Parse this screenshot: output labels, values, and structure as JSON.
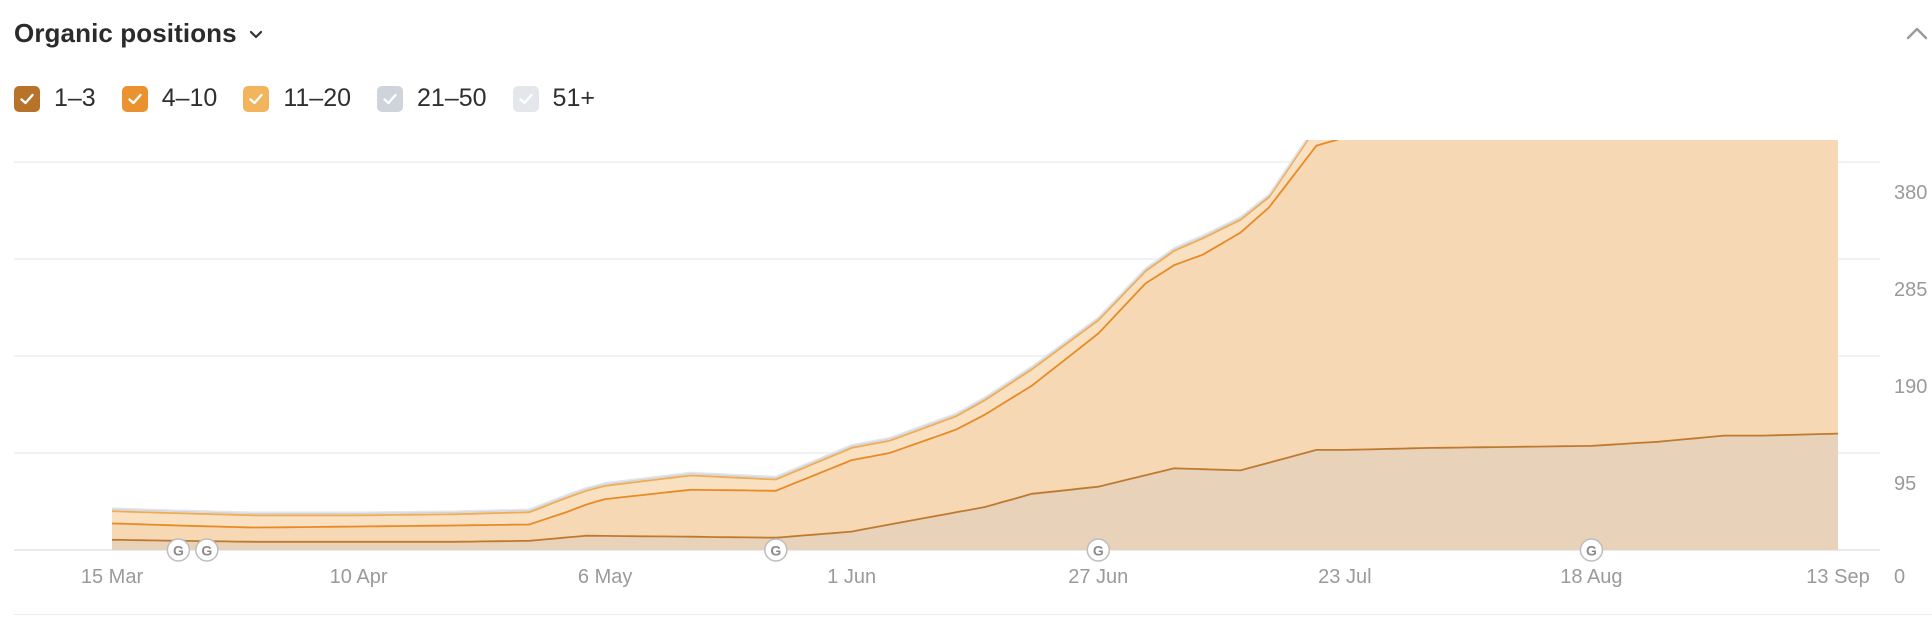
{
  "header": {
    "title": "Organic positions"
  },
  "icons": {
    "dropdown": "chevron-down-icon",
    "collapse": "chevron-up-icon",
    "update_marker": "google-update-icon"
  },
  "legend": [
    {
      "label": "1–3",
      "color": "#b8732a",
      "checked": true
    },
    {
      "label": "4–10",
      "color": "#ea922f",
      "checked": true
    },
    {
      "label": "11–20",
      "color": "#f2b45c",
      "checked": true
    },
    {
      "label": "21–50",
      "color": "#cfd3da",
      "checked": true
    },
    {
      "label": "51+",
      "color": "#e3e6eb",
      "checked": true
    }
  ],
  "chart_data": {
    "type": "area",
    "stacked": true,
    "x_ticks": [
      "15 Mar",
      "10 Apr",
      "6 May",
      "1 Jun",
      "27 Jun",
      "23 Jul",
      "18 Aug",
      "13 Sep"
    ],
    "y_ticks": [
      "0",
      "95",
      "190",
      "285",
      "380"
    ],
    "ylim": [
      0,
      380
    ],
    "grid": true,
    "update_markers": [
      {
        "x": "22 Mar",
        "label": "G"
      },
      {
        "x": "25 Mar",
        "label": "G"
      },
      {
        "x": "24 May",
        "label": "G"
      },
      {
        "x": "27 Jun",
        "label": "G"
      },
      {
        "x": "18 Aug",
        "label": "G"
      }
    ],
    "series": [
      {
        "name": "1–3",
        "color": "#c07a30",
        "x": [
          "15 Mar",
          "22 Mar",
          "30 Mar",
          "10 Apr",
          "20 Apr",
          "28 Apr",
          "4 May",
          "15 May",
          "24 May",
          "1 Jun",
          "5 Jun",
          "15 Jun",
          "20 Jun",
          "27 Jun",
          "5 Jul",
          "12 Jul",
          "20 Jul",
          "23 Jul",
          "1 Aug",
          "10 Aug",
          "18 Aug",
          "25 Aug",
          "1 Sep",
          "5 Sep",
          "13 Sep"
        ],
        "values": [
          10,
          9,
          8,
          8,
          8,
          9,
          14,
          13,
          12,
          18,
          25,
          42,
          55,
          62,
          80,
          78,
          98,
          98,
          100,
          101,
          102,
          106,
          112,
          112,
          114
        ]
      },
      {
        "name": "4–10",
        "color": "#e88a25",
        "x": [
          "15 Mar",
          "22 Mar",
          "30 Mar",
          "10 Apr",
          "20 Apr",
          "28 Apr",
          "2 May",
          "6 May",
          "15 May",
          "24 May",
          "1 Jun",
          "5 Jun",
          "12 Jun",
          "20 Jun",
          "27 Jun",
          "2 Jul",
          "8 Jul",
          "15 Jul",
          "20 Jul",
          "23 Jul",
          "1 Aug",
          "10 Aug",
          "18 Aug",
          "25 Aug",
          "1 Sep",
          "5 Sep",
          "13 Sep"
        ],
        "values": [
          16,
          15,
          14,
          15,
          16,
          16,
          25,
          36,
          46,
          46,
          70,
          70,
          81,
          106,
          150,
          188,
          210,
          250,
          298,
          306,
          328,
          322,
          328,
          341,
          328,
          334,
          337
        ]
      },
      {
        "name": "11–20",
        "color": "#f0ac55",
        "x": [
          "15 Mar",
          "22 Mar",
          "30 Mar",
          "10 Apr",
          "20 Apr",
          "28 Apr",
          "2 May",
          "6 May",
          "15 May",
          "24 May",
          "1 Jun",
          "5 Jun",
          "12 Jun",
          "20 Jun",
          "27 Jun",
          "2 Jul",
          "8 Jul",
          "15 Jul",
          "20 Jul",
          "23 Jul",
          "1 Aug",
          "10 Aug",
          "18 Aug",
          "25 Aug",
          "1 Sep",
          "5 Sep",
          "13 Sep"
        ],
        "values": [
          12,
          12,
          12,
          11,
          11,
          12,
          14,
          13,
          14,
          11,
          12,
          12,
          13,
          16,
          13,
          12,
          16,
          10,
          18,
          18,
          15,
          14,
          14,
          15,
          19,
          17,
          18
        ]
      },
      {
        "name": "21–50",
        "color": "#cfd3da",
        "x": [
          "15 Mar",
          "13 Sep"
        ],
        "values": [
          2,
          2
        ]
      },
      {
        "name": "51+",
        "color": "#e3e6eb",
        "x": [
          "15 Mar",
          "13 Sep"
        ],
        "values": [
          1,
          1
        ]
      }
    ]
  }
}
